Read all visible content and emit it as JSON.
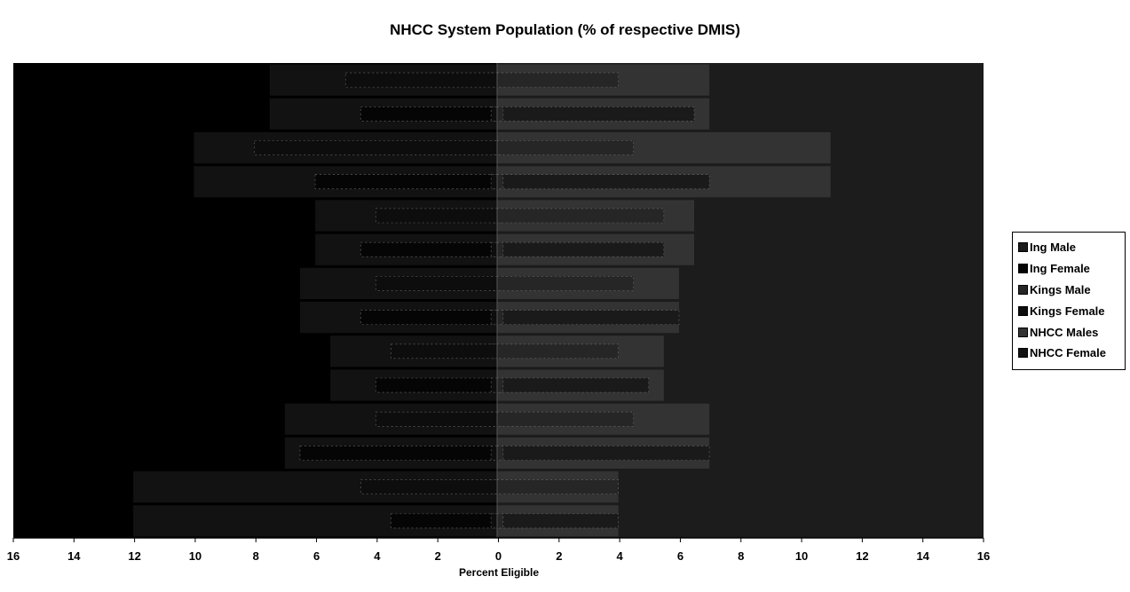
{
  "chart_data": {
    "type": "bar",
    "orientation": "horizontal",
    "title": "NHCC System Population (% of respective DMIS)",
    "xlabel": "Percent Eligible",
    "ylabel": "",
    "xlim": [
      -16,
      16
    ],
    "x_ticks": [
      "16",
      "14",
      "12",
      "10",
      "8",
      "6",
      "4",
      "2",
      "0",
      "2",
      "4",
      "6",
      "8",
      "10",
      "12",
      "14",
      "16"
    ],
    "legend_position": "right",
    "series": [
      {
        "name": "Ing Male",
        "side": "right",
        "color": "#1a1a1a",
        "values": [
          0.2,
          6.5,
          0.2,
          7.0,
          0.2,
          5.5,
          0.2,
          6.0,
          0.2,
          5.0,
          0.2,
          7.0,
          0.2,
          4.0
        ]
      },
      {
        "name": "Ing Female",
        "side": "left",
        "color": "#050505",
        "values": [
          0.2,
          4.5,
          0.2,
          6.0,
          0.2,
          4.5,
          0.2,
          4.5,
          0.2,
          4.0,
          0.2,
          6.5,
          0.2,
          3.5
        ]
      },
      {
        "name": "Kings Male",
        "side": "right",
        "color": "#262626",
        "values": [
          4.0,
          0.2,
          4.5,
          0.2,
          5.5,
          0.2,
          4.5,
          0.2,
          4.0,
          0.2,
          4.5,
          0.2,
          4.0,
          0.2
        ]
      },
      {
        "name": "Kings Female",
        "side": "left",
        "color": "#0d0d0d",
        "values": [
          5.0,
          0.2,
          8.0,
          0.2,
          4.0,
          0.2,
          4.0,
          0.2,
          3.5,
          0.2,
          4.0,
          0.2,
          4.5,
          0.2
        ]
      },
      {
        "name": "NHCC Males",
        "side": "right",
        "color": "#333333",
        "values": [
          7.0,
          7.0,
          11.0,
          11.0,
          6.5,
          6.5,
          6.0,
          6.0,
          5.5,
          5.5,
          7.0,
          7.0,
          4.0,
          4.0
        ]
      },
      {
        "name": "NHCC Female",
        "side": "left",
        "color": "#121212",
        "values": [
          7.5,
          7.5,
          10.0,
          10.0,
          6.0,
          6.0,
          6.5,
          6.5,
          5.5,
          5.5,
          7.0,
          7.0,
          12.0,
          12.0
        ]
      }
    ]
  }
}
